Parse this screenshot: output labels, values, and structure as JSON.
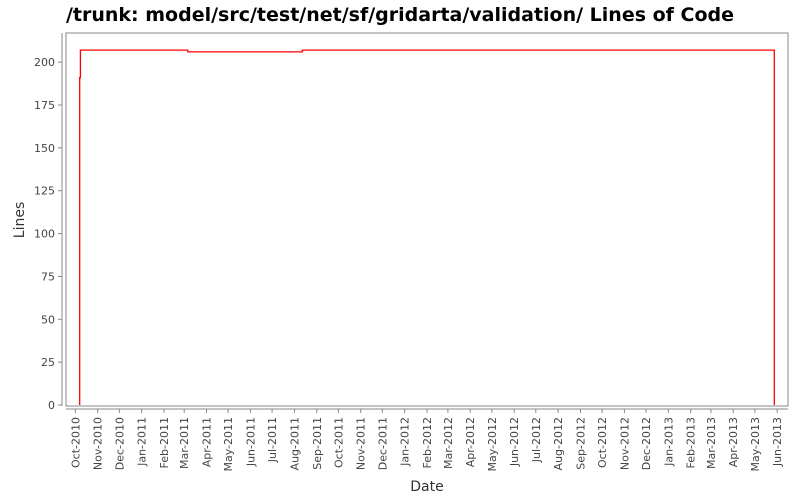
{
  "chart_data": {
    "type": "line",
    "title": "/trunk: model/src/test/net/sf/gridarta/validation/ Lines of Code",
    "xlabel": "Date",
    "ylabel": "Lines",
    "step": true,
    "xlim": [
      "2010-09-18",
      "2013-06-16"
    ],
    "ylim": [
      0,
      217
    ],
    "yticks": [
      0,
      25,
      50,
      75,
      100,
      125,
      150,
      175,
      200
    ],
    "xticks": [
      "Oct-2010",
      "Nov-2010",
      "Dec-2010",
      "Jan-2011",
      "Feb-2011",
      "Mar-2011",
      "Apr-2011",
      "May-2011",
      "Jun-2011",
      "Jul-2011",
      "Aug-2011",
      "Sep-2011",
      "Oct-2011",
      "Nov-2011",
      "Dec-2011",
      "Jan-2012",
      "Feb-2012",
      "Mar-2012",
      "Apr-2012",
      "May-2012",
      "Jun-2012",
      "Jul-2012",
      "Aug-2012",
      "Sep-2012",
      "Oct-2012",
      "Nov-2012",
      "Dec-2012",
      "Jan-2013",
      "Feb-2013",
      "Mar-2013",
      "Apr-2013",
      "May-2013",
      "Jun-2013"
    ],
    "grid": false,
    "series": [
      {
        "color": "#ff0000",
        "points": [
          {
            "x": "2010-10-07",
            "y": 191
          },
          {
            "x": "2010-10-08",
            "y": 207
          },
          {
            "x": "2011-03-06",
            "y": 206
          },
          {
            "x": "2011-08-12",
            "y": 207
          },
          {
            "x": "2013-05-28",
            "y": 0
          }
        ]
      }
    ]
  }
}
